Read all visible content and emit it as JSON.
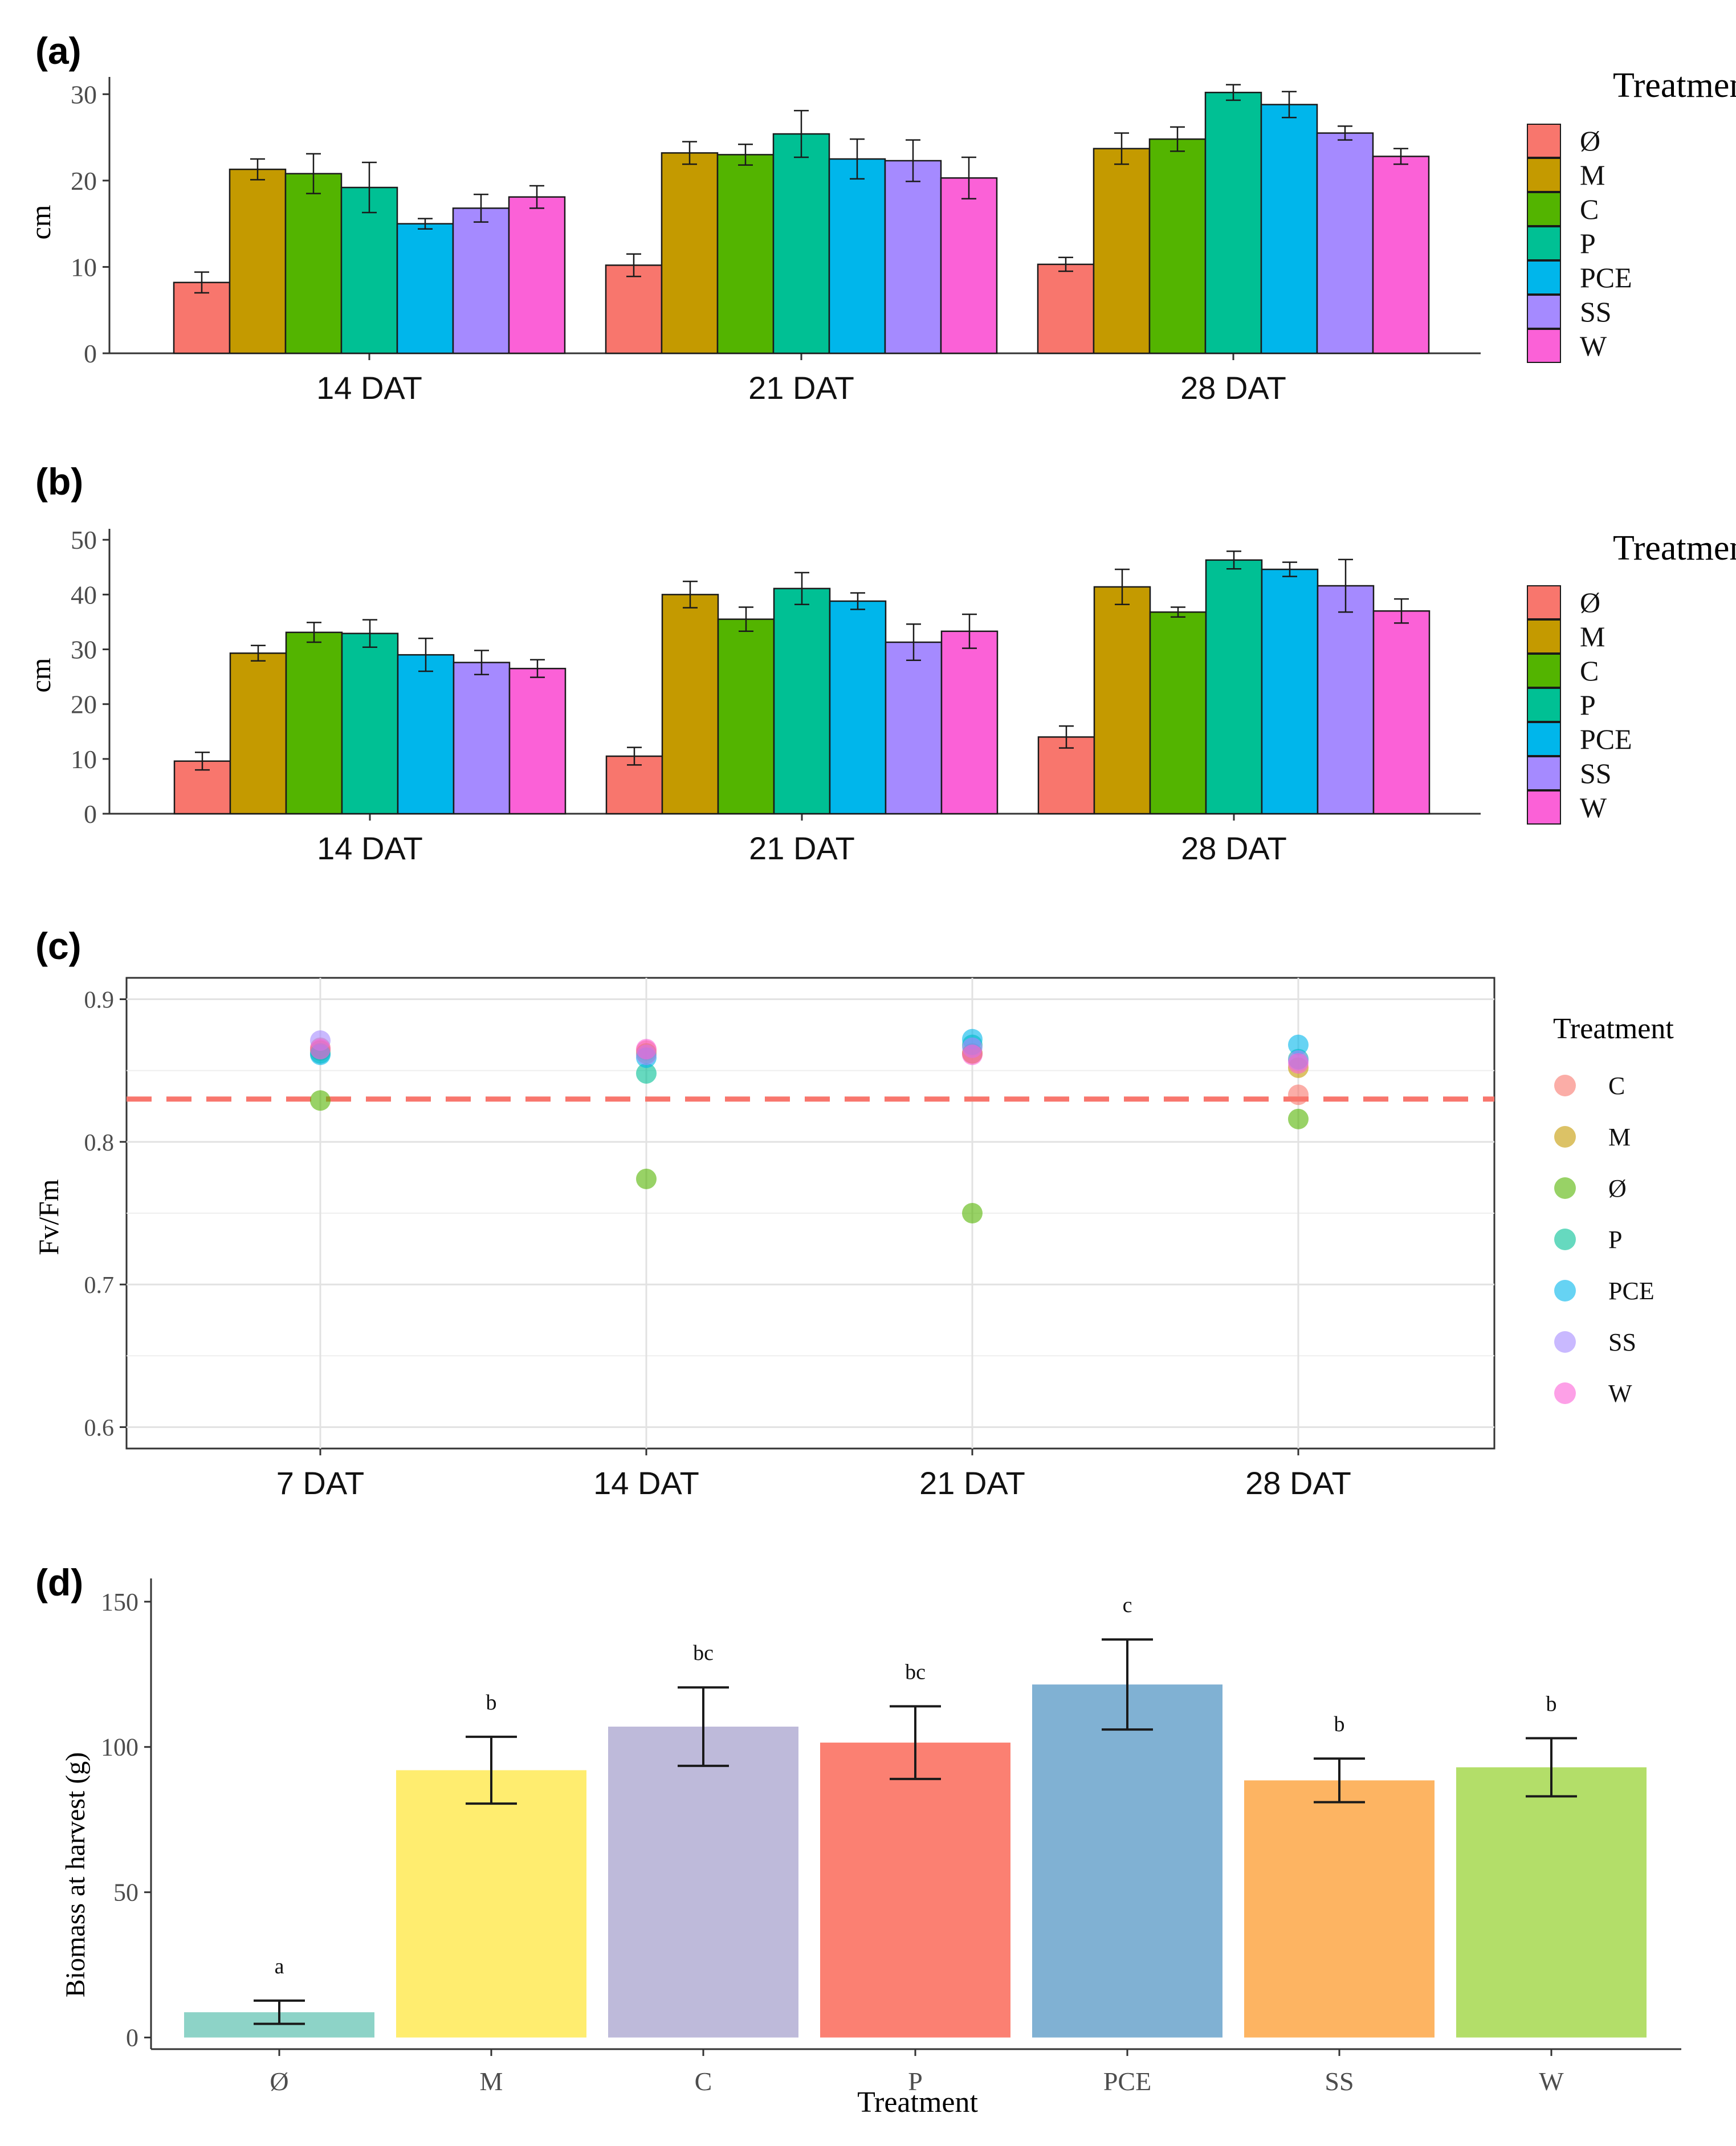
{
  "chart_data": [
    {
      "panel_label": "(a)",
      "type": "bar",
      "ylabel": "cm",
      "ylim": [
        0,
        32
      ],
      "yticks": [
        0,
        10,
        20,
        30
      ],
      "categories": [
        "14 DAT",
        "21 DAT",
        "28 DAT"
      ],
      "legend_title": "Treatment",
      "series": [
        {
          "name": "Ø",
          "color": "#F8766D",
          "values": [
            8.2,
            10.2,
            10.3
          ],
          "errors": [
            1.2,
            1.3,
            0.8
          ]
        },
        {
          "name": "M",
          "color": "#C49A00",
          "values": [
            21.3,
            23.2,
            23.7
          ],
          "errors": [
            1.2,
            1.3,
            1.8
          ]
        },
        {
          "name": "C",
          "color": "#53B400",
          "values": [
            20.8,
            23.0,
            24.8
          ],
          "errors": [
            2.3,
            1.2,
            1.4
          ]
        },
        {
          "name": "P",
          "color": "#00C094",
          "values": [
            19.2,
            25.4,
            30.2
          ],
          "errors": [
            2.9,
            2.7,
            0.9
          ]
        },
        {
          "name": "PCE",
          "color": "#00B6EB",
          "values": [
            15.0,
            22.5,
            28.8
          ],
          "errors": [
            0.6,
            2.3,
            1.5
          ]
        },
        {
          "name": "SS",
          "color": "#A58AFF",
          "values": [
            16.8,
            22.3,
            25.5
          ],
          "errors": [
            1.6,
            2.4,
            0.8
          ]
        },
        {
          "name": "W",
          "color": "#FB61D7",
          "values": [
            18.1,
            20.3,
            22.8
          ],
          "errors": [
            1.3,
            2.4,
            0.9
          ]
        }
      ]
    },
    {
      "panel_label": "(b)",
      "type": "bar",
      "ylabel": "cm",
      "ylim": [
        0,
        52
      ],
      "yticks": [
        0,
        10,
        20,
        30,
        40,
        50
      ],
      "categories": [
        "14 DAT",
        "21 DAT",
        "28 DAT"
      ],
      "legend_title": "Treatment",
      "series": [
        {
          "name": "Ø",
          "color": "#F8766D",
          "values": [
            9.6,
            10.5,
            14.0
          ],
          "errors": [
            1.6,
            1.6,
            2.0
          ]
        },
        {
          "name": "M",
          "color": "#C49A00",
          "values": [
            29.3,
            40.0,
            41.4
          ],
          "errors": [
            1.4,
            2.4,
            3.2
          ]
        },
        {
          "name": "C",
          "color": "#53B400",
          "values": [
            33.1,
            35.5,
            36.8
          ],
          "errors": [
            1.8,
            2.2,
            0.9
          ]
        },
        {
          "name": "P",
          "color": "#00C094",
          "values": [
            32.9,
            41.1,
            46.3
          ],
          "errors": [
            2.5,
            2.9,
            1.6
          ]
        },
        {
          "name": "PCE",
          "color": "#00B6EB",
          "values": [
            29.0,
            38.8,
            44.6
          ],
          "errors": [
            3.0,
            1.5,
            1.3
          ]
        },
        {
          "name": "SS",
          "color": "#A58AFF",
          "values": [
            27.6,
            31.3,
            41.6
          ],
          "errors": [
            2.2,
            3.3,
            4.8
          ]
        },
        {
          "name": "W",
          "color": "#FB61D7",
          "values": [
            26.5,
            33.3,
            37.0
          ],
          "errors": [
            1.6,
            3.1,
            2.2
          ]
        }
      ]
    },
    {
      "panel_label": "(c)",
      "type": "scatter",
      "ylabel": "Fv/Fm",
      "ylim": [
        0.585,
        0.915
      ],
      "yticks": [
        0.6,
        0.7,
        0.8,
        0.9
      ],
      "ytick_labels": [
        "0.6",
        "0.7",
        "0.8",
        "0.9"
      ],
      "categories": [
        "7 DAT",
        "14 DAT",
        "21 DAT",
        "28 DAT"
      ],
      "reference_line": 0.83,
      "reference_color": "#F8766D",
      "legend_title": "Treatment",
      "series": [
        {
          "name": "C",
          "color": "#F8766D",
          "values": [
            0.866,
            0.864,
            0.862,
            0.833
          ]
        },
        {
          "name": "M",
          "color": "#C49A00",
          "values": [
            0.864,
            0.862,
            0.862,
            0.852
          ]
        },
        {
          "name": "Ø",
          "color": "#53B400",
          "values": [
            0.829,
            0.774,
            0.75,
            0.816
          ]
        },
        {
          "name": "P",
          "color": "#00C094",
          "values": [
            0.862,
            0.848,
            0.868,
            0.858
          ]
        },
        {
          "name": "PCE",
          "color": "#00B6EB",
          "values": [
            0.861,
            0.859,
            0.872,
            0.868
          ]
        },
        {
          "name": "SS",
          "color": "#A58AFF",
          "values": [
            0.871,
            0.861,
            0.866,
            0.857
          ]
        },
        {
          "name": "W",
          "color": "#FB61D7",
          "values": [
            0.865,
            0.865,
            0.861,
            0.855
          ]
        }
      ]
    },
    {
      "panel_label": "(d)",
      "type": "bar",
      "xlabel": "Treatment",
      "ylabel": "Biomass at harvest (g)",
      "ylim": [
        -4,
        158
      ],
      "yticks": [
        0,
        50,
        100,
        150
      ],
      "categories": [
        "Ø",
        "M",
        "C",
        "P",
        "PCE",
        "SS",
        "W"
      ],
      "values": [
        8.7,
        92.0,
        107.0,
        101.5,
        121.5,
        88.5,
        93.0
      ],
      "errors": [
        4.0,
        11.5,
        13.5,
        12.5,
        15.5,
        7.5,
        10.0
      ],
      "significance_letters": [
        "a",
        "b",
        "bc",
        "bc",
        "c",
        "b",
        "b"
      ],
      "colors": [
        "#8DD3C7",
        "#FFED6F",
        "#BEBADA",
        "#FB8072",
        "#80B1D3",
        "#FDB462",
        "#B3DE69"
      ]
    }
  ]
}
